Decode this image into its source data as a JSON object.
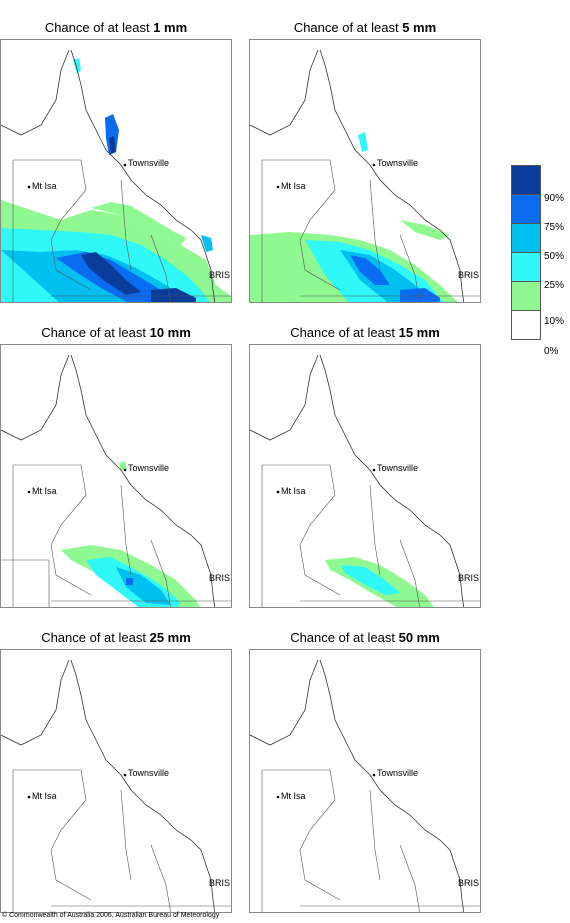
{
  "panels": [
    {
      "prefix": "Chance of at least ",
      "amount": "1 mm"
    },
    {
      "prefix": "Chance of at least ",
      "amount": "5 mm"
    },
    {
      "prefix": "Chance of at least ",
      "amount": "10 mm"
    },
    {
      "prefix": "Chance of at least ",
      "amount": "15 mm"
    },
    {
      "prefix": "Chance of at least ",
      "amount": "25 mm"
    },
    {
      "prefix": "Chance of at least ",
      "amount": "50 mm"
    }
  ],
  "places": {
    "townsville": "Townsville",
    "mt_isa": "Mt Isa",
    "bris": "BRIS"
  },
  "legend": {
    "labels": [
      "90%",
      "75%",
      "50%",
      "25%",
      "10%",
      "0%"
    ],
    "colors": [
      "#0a3c9c",
      "#0a6cf0",
      "#00c0f0",
      "#30f8f8",
      "#90f890",
      "#ffffff"
    ]
  },
  "copyright": "© Commonwealth of Australia 2006, Australian Bureau of Meteorology"
}
